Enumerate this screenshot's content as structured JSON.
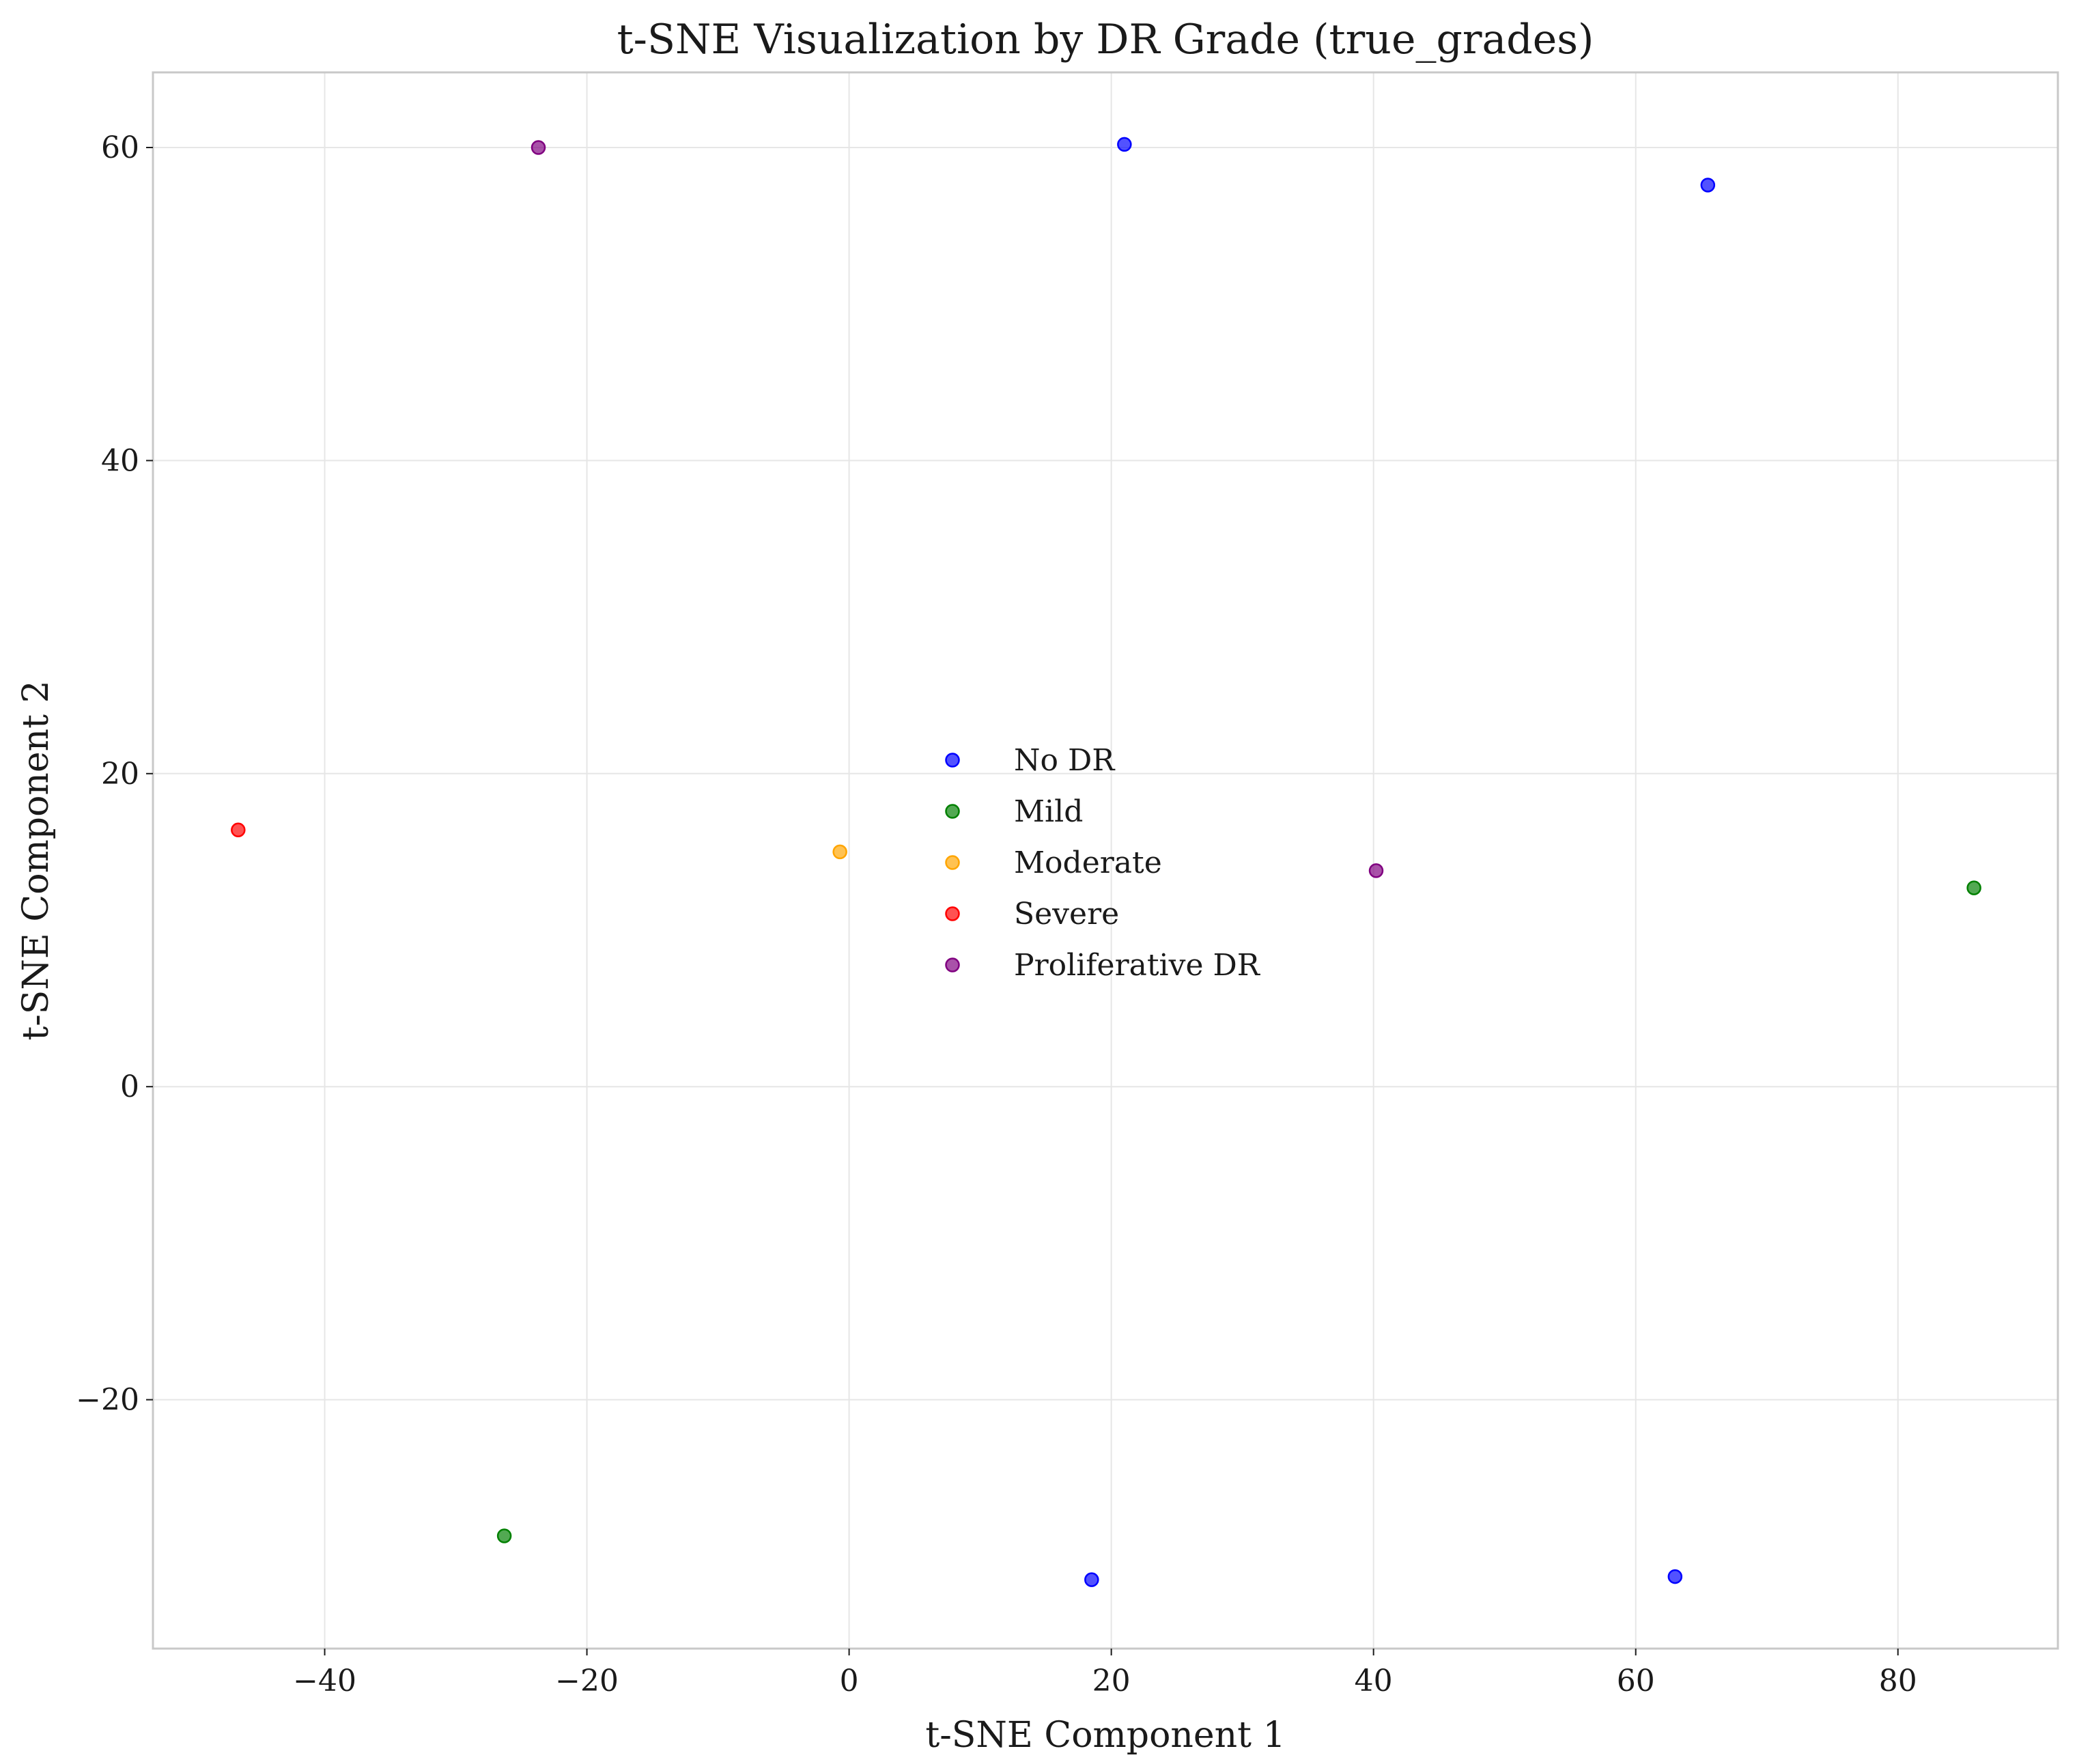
{
  "chart_data": {
    "type": "scatter",
    "title": "t-SNE Visualization by DR Grade (true_grades)",
    "xlabel": "t-SNE Component 1",
    "ylabel": "t-SNE Component 2",
    "xlim": [
      -53.1,
      92.2
    ],
    "ylim": [
      -35.9,
      64.8
    ],
    "xticks": [
      -40,
      -20,
      0,
      20,
      40,
      60,
      80
    ],
    "yticks": [
      -20,
      0,
      20,
      40,
      60
    ],
    "xtick_labels": [
      "−40",
      "−20",
      "0",
      "20",
      "40",
      "60",
      "80"
    ],
    "ytick_labels": [
      "−20",
      "0",
      "20",
      "40",
      "60"
    ],
    "grid": true,
    "legend_position": "center",
    "series": [
      {
        "name": "No DR",
        "color": "#0000ff",
        "points": [
          {
            "x": 21.0,
            "y": 60.2
          },
          {
            "x": 65.5,
            "y": 57.6
          },
          {
            "x": 18.5,
            "y": -31.5
          },
          {
            "x": 63.0,
            "y": -31.3
          }
        ]
      },
      {
        "name": "Mild",
        "color": "#008000",
        "points": [
          {
            "x": 85.8,
            "y": 12.7
          },
          {
            "x": -26.3,
            "y": -28.7
          }
        ]
      },
      {
        "name": "Moderate",
        "color": "#ffa500",
        "points": [
          {
            "x": -0.7,
            "y": 15.0
          }
        ]
      },
      {
        "name": "Severe",
        "color": "#ff0000",
        "points": [
          {
            "x": -46.6,
            "y": 16.4
          }
        ]
      },
      {
        "name": "Proliferative DR",
        "color": "#800080",
        "points": [
          {
            "x": -23.7,
            "y": 60.0
          },
          {
            "x": 40.2,
            "y": 13.8
          }
        ]
      }
    ]
  }
}
